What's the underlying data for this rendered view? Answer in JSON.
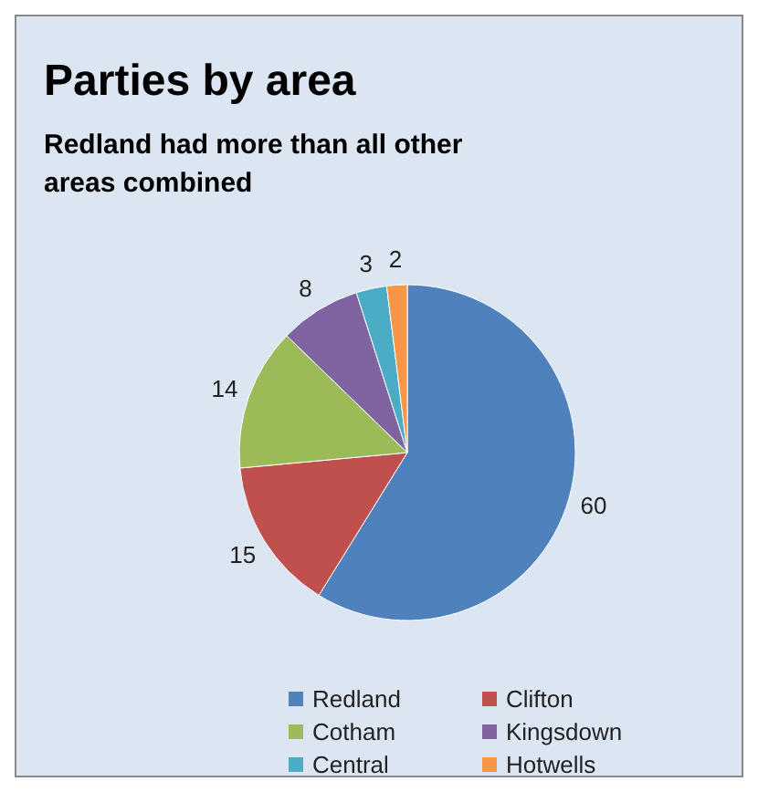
{
  "chart_data": {
    "type": "pie",
    "title": "Parties by area",
    "subtitle": "Redland had more than all other areas combined",
    "categories": [
      "Redland",
      "Clifton",
      "Cotham",
      "Kingsdown",
      "Central",
      "Hotwells"
    ],
    "values": [
      60,
      15,
      14,
      8,
      3,
      2
    ],
    "colors": [
      "#4f81bd",
      "#c0504d",
      "#9bbb59",
      "#8064a2",
      "#4bacc6",
      "#f79646"
    ],
    "data_labels": true,
    "legend": "bottom"
  }
}
